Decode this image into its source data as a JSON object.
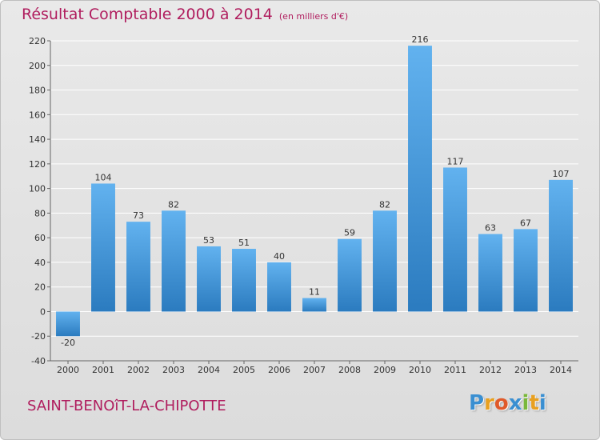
{
  "header": {
    "title": "Résultat Comptable 2000 à 2014",
    "unit": "(en milliers d'€)"
  },
  "footer": {
    "commune": "SAINT-BENOîT-LA-CHIPOTTE",
    "logo_letters": [
      "P",
      "r",
      "o",
      "x",
      "i",
      "t",
      "i"
    ],
    "logo_colors": [
      "#3a8fd1",
      "#e8a020",
      "#e05a2a",
      "#3a8fd1",
      "#7ab83a",
      "#e8a020",
      "#3a8fd1"
    ]
  },
  "colors": {
    "title": "#b01d5e",
    "bar_top": "#62b2ef",
    "bar_bottom": "#2b7bbf",
    "grid": "#ffffff"
  },
  "chart_data": {
    "type": "bar",
    "categories": [
      "2000",
      "2001",
      "2002",
      "2003",
      "2004",
      "2005",
      "2006",
      "2007",
      "2008",
      "2009",
      "2010",
      "2011",
      "2012",
      "2013",
      "2014"
    ],
    "values": [
      -20,
      104,
      73,
      82,
      53,
      51,
      40,
      11,
      59,
      82,
      216,
      117,
      63,
      67,
      107
    ],
    "value_labels": [
      "-20",
      "104",
      "73",
      "82",
      "53",
      "51",
      "40",
      "11",
      "59",
      "82",
      "216",
      "117",
      "63",
      "67",
      "107"
    ],
    "ylim": [
      -40,
      220
    ],
    "yticks": [
      -40,
      -20,
      0,
      20,
      40,
      60,
      80,
      100,
      120,
      140,
      160,
      180,
      200,
      220
    ],
    "ytick_labels": [
      "-40",
      "-20",
      "0",
      "20",
      "40",
      "60",
      "80",
      "100",
      "120",
      "140",
      "160",
      "180",
      "200",
      "220"
    ],
    "grid": true,
    "legend": "none"
  }
}
